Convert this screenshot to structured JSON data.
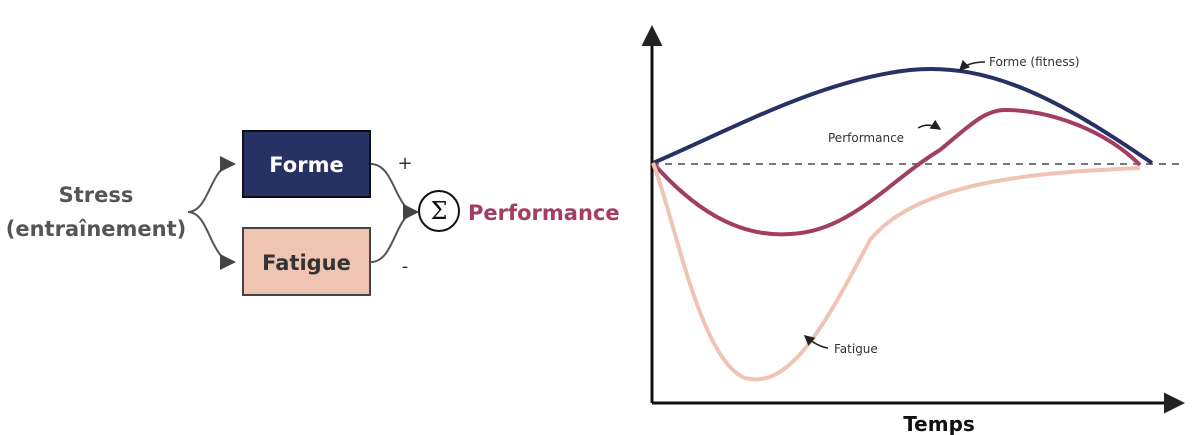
{
  "model": {
    "input_label_line1": "Stress",
    "input_label_line2": "(entraînement)",
    "forme_label": "Forme",
    "fatigue_label": "Fatigue",
    "plus_sign": "+",
    "minus_sign": "-",
    "sum_symbol": "Σ",
    "output_label": "Performance"
  },
  "chart": {
    "labels": {
      "forme": "Forme (fitness)",
      "performance": "Performance",
      "fatigue": "Fatigue"
    },
    "xlabel": "Temps"
  },
  "colors": {
    "forme": "#263264",
    "fatigue": "#f0c4b3",
    "performance": "#a23d63",
    "text": "#555555",
    "axis": "#111111",
    "baseline": "#777777"
  }
}
